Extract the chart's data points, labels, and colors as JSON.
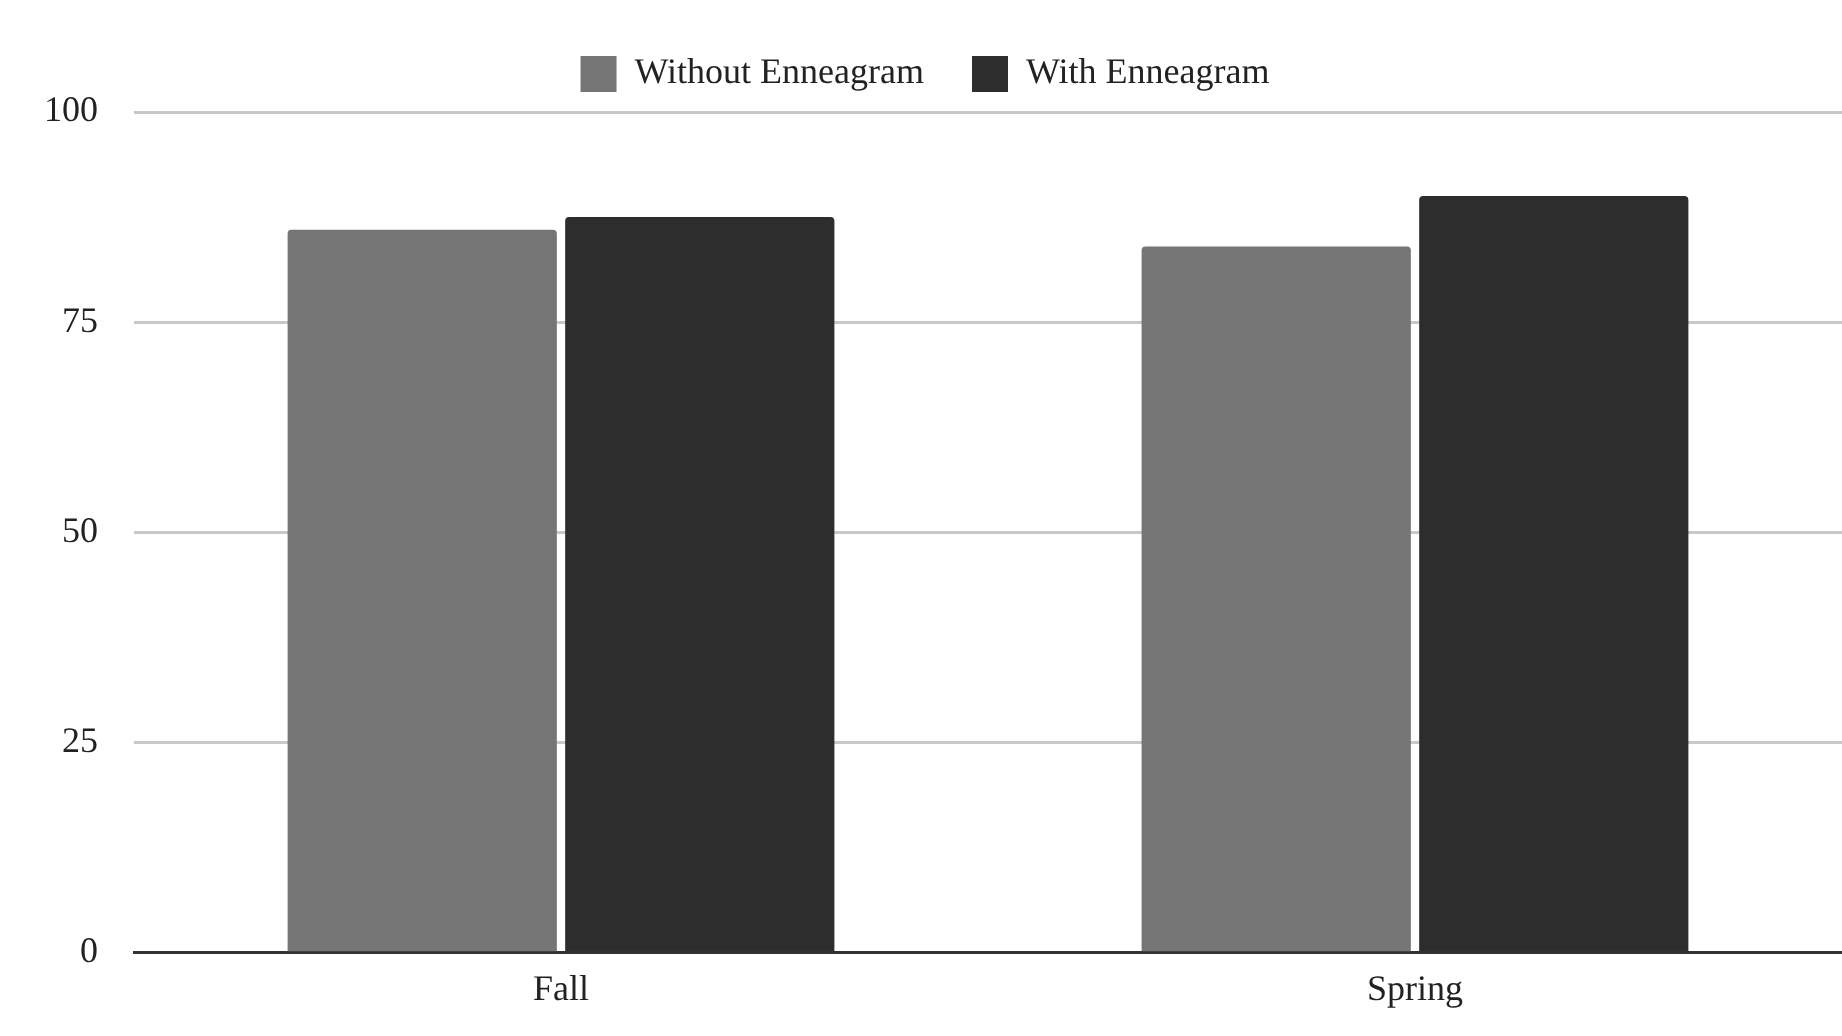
{
  "chart_data": {
    "type": "bar",
    "categories": [
      "Fall",
      "Spring"
    ],
    "series": [
      {
        "name": "Without Enneagram",
        "color": "#757575",
        "values": [
          86,
          84
        ]
      },
      {
        "name": "With Enneagram",
        "color": "#2d2d2d",
        "values": [
          87.5,
          90
        ]
      }
    ],
    "ylim": [
      0,
      100
    ],
    "yticks": [
      0,
      25,
      50,
      75,
      100
    ],
    "grid": "y",
    "legend": "top"
  }
}
